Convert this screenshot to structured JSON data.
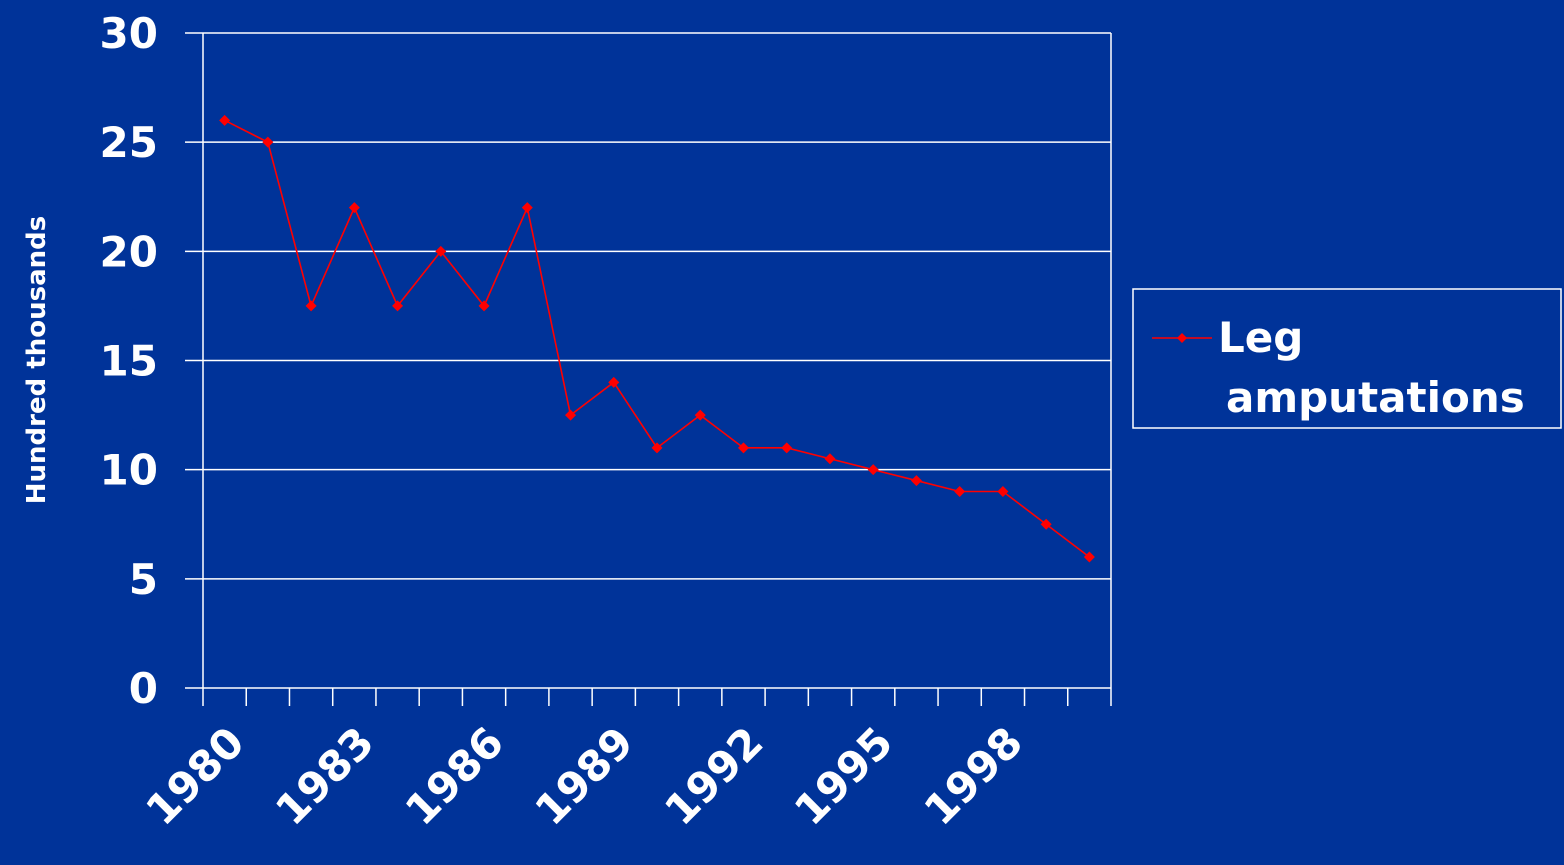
{
  "colors": {
    "background": "#003399",
    "axis": "#ffffff",
    "grid": "#ffffff",
    "series": "#ff0000"
  },
  "chart_data": {
    "type": "line",
    "title": "",
    "xlabel": "",
    "ylabel": "Hundred thousands",
    "ylim": [
      0,
      30
    ],
    "yticks": [
      0,
      5,
      10,
      15,
      20,
      25,
      30
    ],
    "grid": true,
    "legend_position": "right",
    "x": [
      1980,
      1981,
      1982,
      1983,
      1984,
      1985,
      1986,
      1987,
      1988,
      1989,
      1990,
      1991,
      1992,
      1993,
      1994,
      1995,
      1996,
      1997,
      1998,
      1999,
      2000
    ],
    "x_tick_labels": [
      "1980",
      "1983",
      "1986",
      "1989",
      "1992",
      "1995",
      "1998"
    ],
    "x_tick_label_years": [
      1980,
      1983,
      1986,
      1989,
      1992,
      1995,
      1998
    ],
    "series": [
      {
        "name": "Leg amputations",
        "legend_lines": [
          "Leg",
          "amputations"
        ],
        "values": [
          26,
          25,
          17.5,
          22,
          17.5,
          20,
          17.5,
          22,
          12.5,
          14,
          11,
          12.5,
          11,
          11,
          10.5,
          10,
          9.5,
          9,
          9,
          7.5,
          6
        ]
      }
    ]
  }
}
